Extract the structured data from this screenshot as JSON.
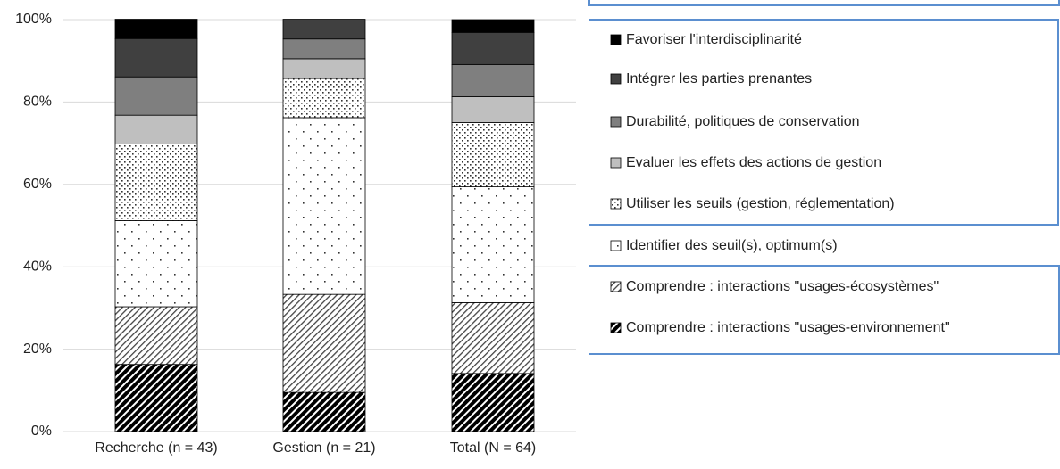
{
  "chart_data": {
    "type": "stacked-bar",
    "categories": [
      "Recherche (n = 43)",
      "Gestion (n = 21)",
      "Total (N = 64)"
    ],
    "series": [
      {
        "name": "Comprendre : interactions \"usages-environnement\"",
        "color": "#000000",
        "pattern": "dense-stripes",
        "values": [
          16.3,
          9.5,
          14.1
        ]
      },
      {
        "name": "Comprendre : interactions \"usages-écosystèmes\"",
        "color": "#000000",
        "pattern": "light-stripes",
        "values": [
          14.0,
          23.8,
          17.2
        ]
      },
      {
        "name": "Identifier des seuil(s), optimum(s)",
        "color": "#000000",
        "pattern": "sparse-dots",
        "values": [
          20.9,
          42.9,
          28.1
        ]
      },
      {
        "name": "Utiliser les seuils (gestion, réglementation)",
        "color": "#000000",
        "pattern": "dense-dots",
        "values": [
          18.6,
          9.5,
          15.6
        ]
      },
      {
        "name": "Evaluer les effets des actions de gestion",
        "color": "#bfbfbf",
        "values": [
          7.0,
          4.8,
          6.3
        ]
      },
      {
        "name": "Durabilité, politiques de conservation",
        "color": "#7f7f7f",
        "values": [
          9.3,
          4.8,
          7.8
        ]
      },
      {
        "name": "Intégrer les parties prenantes",
        "color": "#404040",
        "values": [
          9.3,
          4.8,
          7.8
        ]
      },
      {
        "name": "Favoriser l'interdisciplinarité",
        "color": "#000000",
        "values": [
          4.7,
          0,
          3.1
        ]
      }
    ],
    "ylim": [
      0,
      100
    ],
    "yticks": [
      {
        "value": 0,
        "label": "0%"
      },
      {
        "value": 20,
        "label": "20%"
      },
      {
        "value": 40,
        "label": "40%"
      },
      {
        "value": 60,
        "label": "60%"
      },
      {
        "value": 80,
        "label": "80%"
      },
      {
        "value": 100,
        "label": "100%"
      }
    ],
    "grid": true,
    "legend": "right"
  }
}
